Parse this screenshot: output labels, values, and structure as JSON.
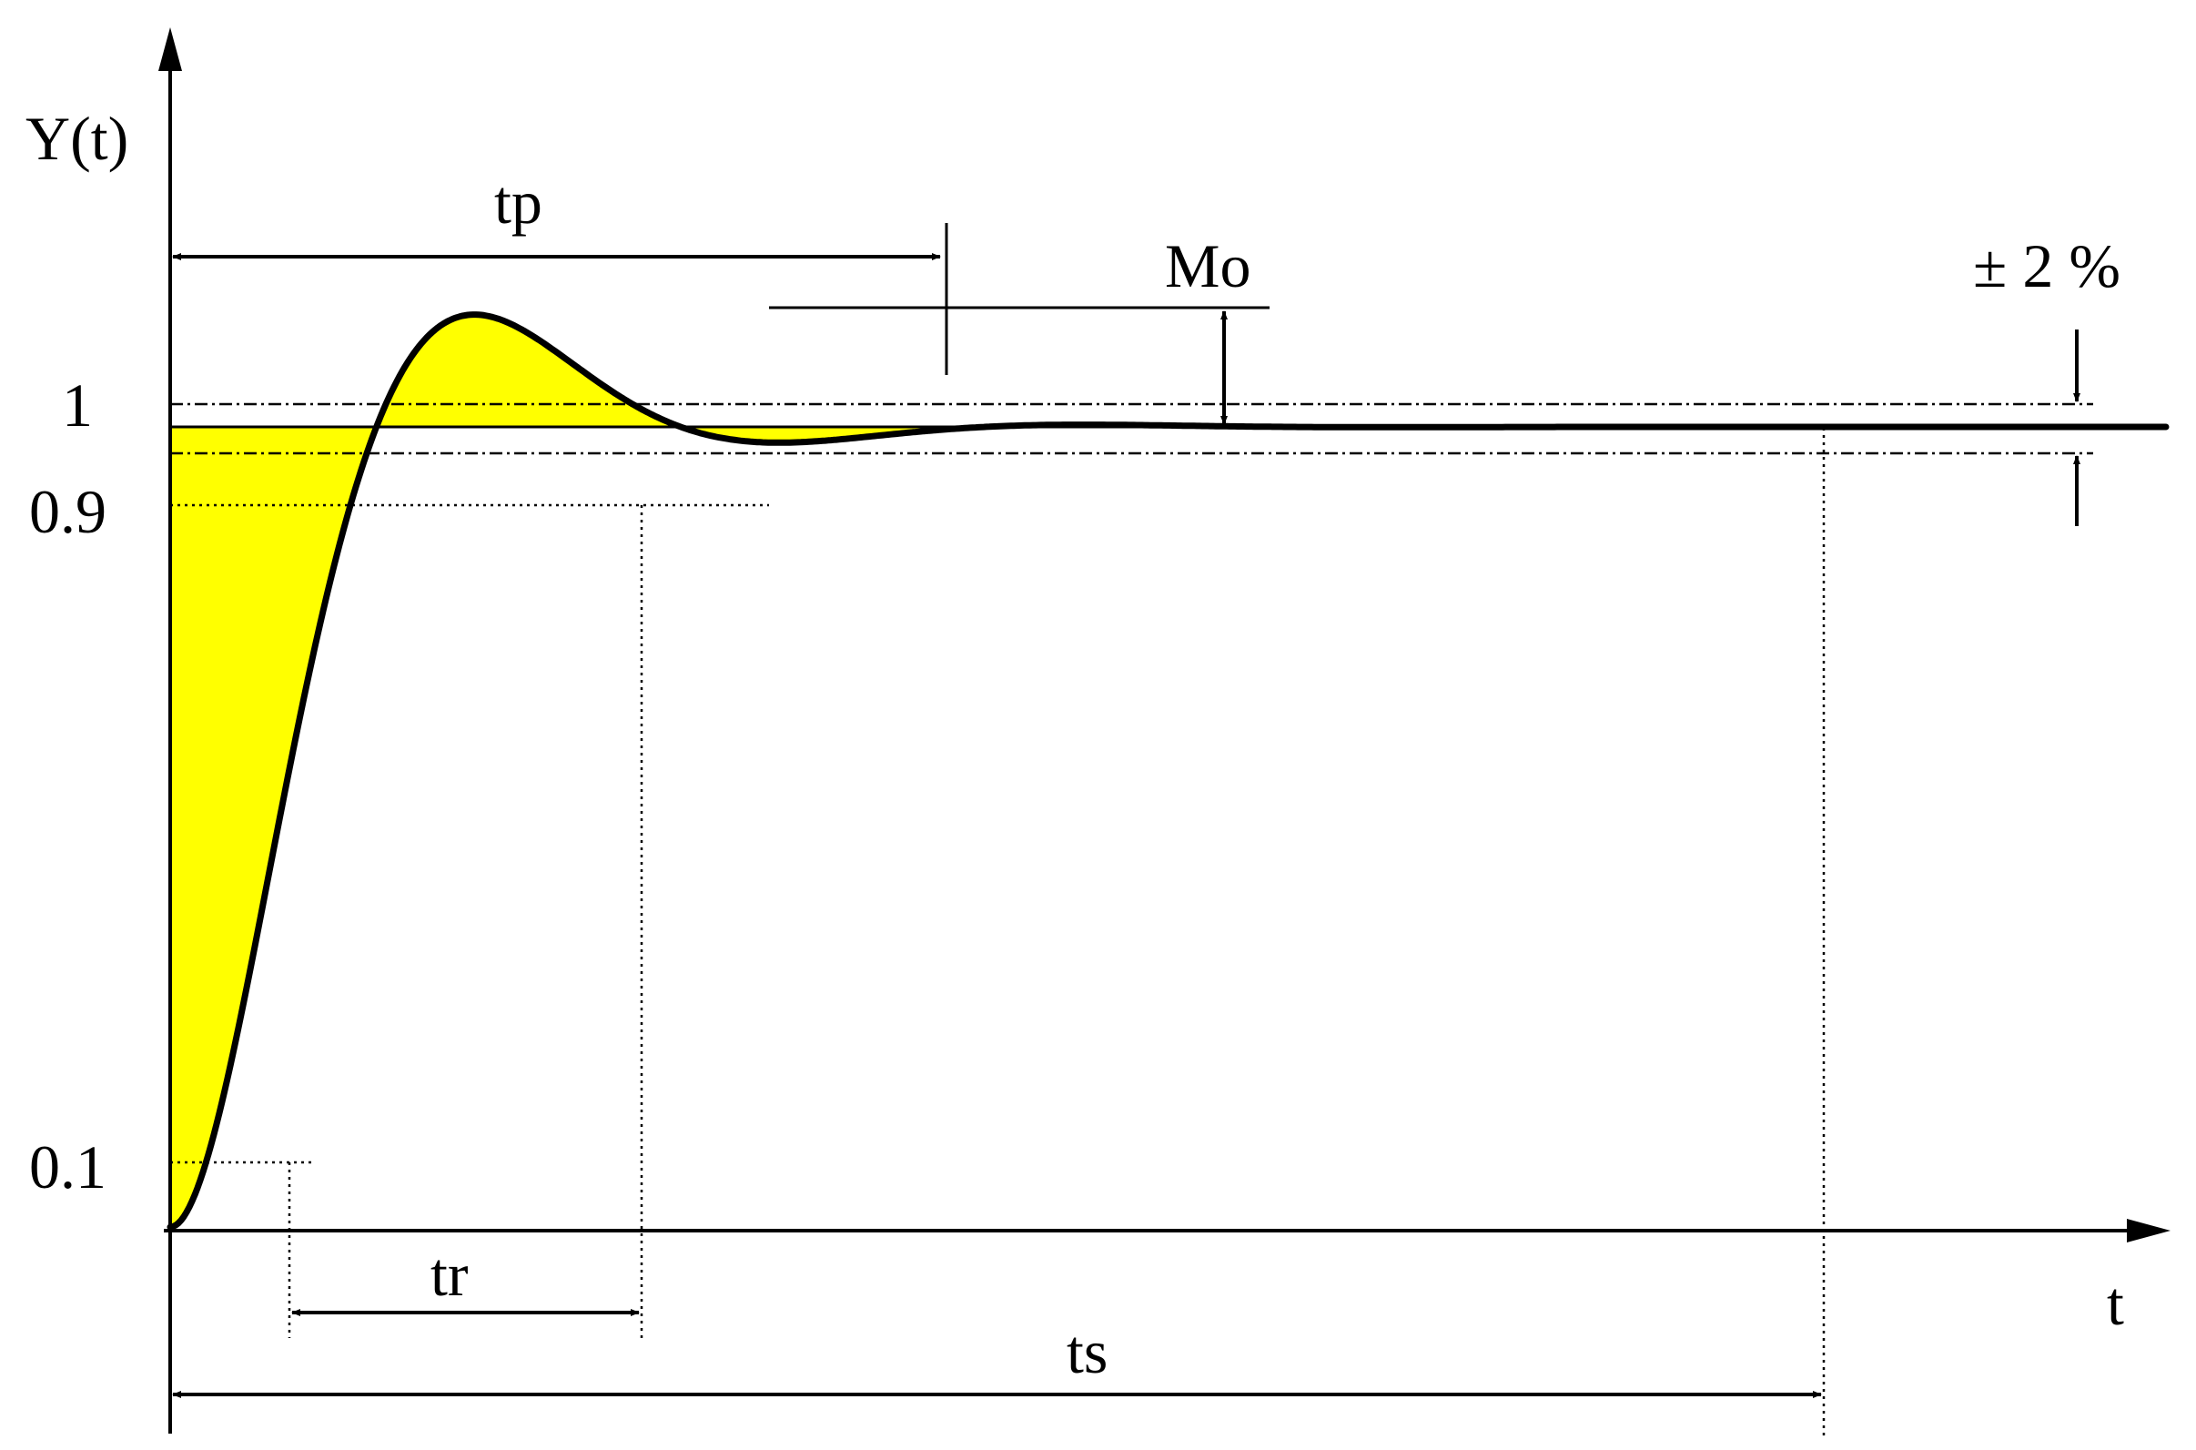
{
  "diagram": {
    "y_axis_label": "Y(t)",
    "x_axis_label": "t",
    "ticks": {
      "one": "1",
      "ninety": "0.9",
      "ten": "0.1"
    },
    "annotations": {
      "peak_time": "tp",
      "overshoot": "Mo",
      "tolerance": "± 2 %",
      "rise_time": "tr",
      "settling_time": "ts"
    },
    "colors": {
      "fill": "#ffff00",
      "curve": "#000000"
    },
    "response": {
      "final_value": 1,
      "peak_value": 1.147,
      "tolerance_percent": 2
    }
  }
}
